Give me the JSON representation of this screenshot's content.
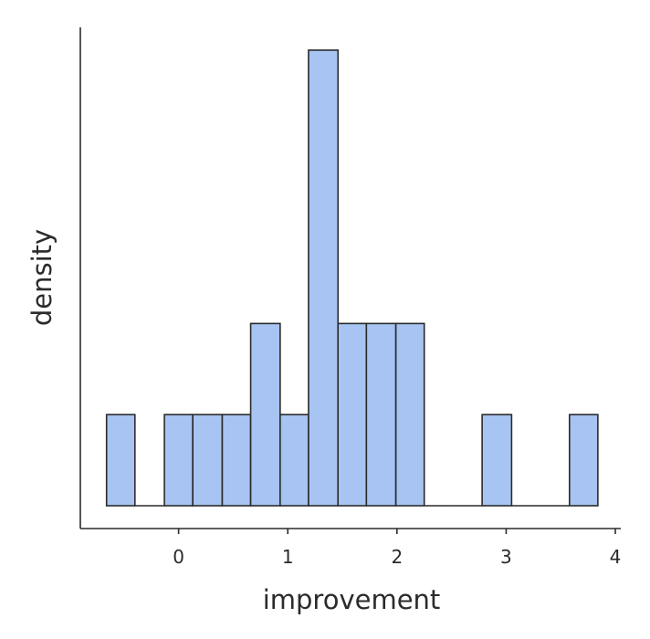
{
  "chart_data": {
    "type": "bar",
    "subtype": "histogram",
    "title": "",
    "xlabel": "improvement",
    "ylabel": "density",
    "bin_edges": [
      -0.66,
      -0.4,
      -0.13,
      0.13,
      0.4,
      0.66,
      0.93,
      1.19,
      1.46,
      1.72,
      1.99,
      2.25,
      2.52,
      2.78,
      3.05,
      3.31,
      3.58,
      3.84
    ],
    "counts": [
      1,
      0,
      1,
      1,
      1,
      2,
      1,
      5,
      2,
      2,
      2,
      0,
      0,
      1,
      0,
      0,
      1
    ],
    "xlim": [
      -0.9,
      4.05
    ],
    "ylim": [
      0,
      5.25
    ],
    "xticks": [
      0,
      1,
      2,
      3,
      4
    ],
    "xtick_labels": [
      "0",
      "1",
      "2",
      "3",
      "4"
    ],
    "yticks_shown": false,
    "grid": false,
    "bar_color": "#a7c4f2",
    "edge_color": "#2b2b2b"
  }
}
